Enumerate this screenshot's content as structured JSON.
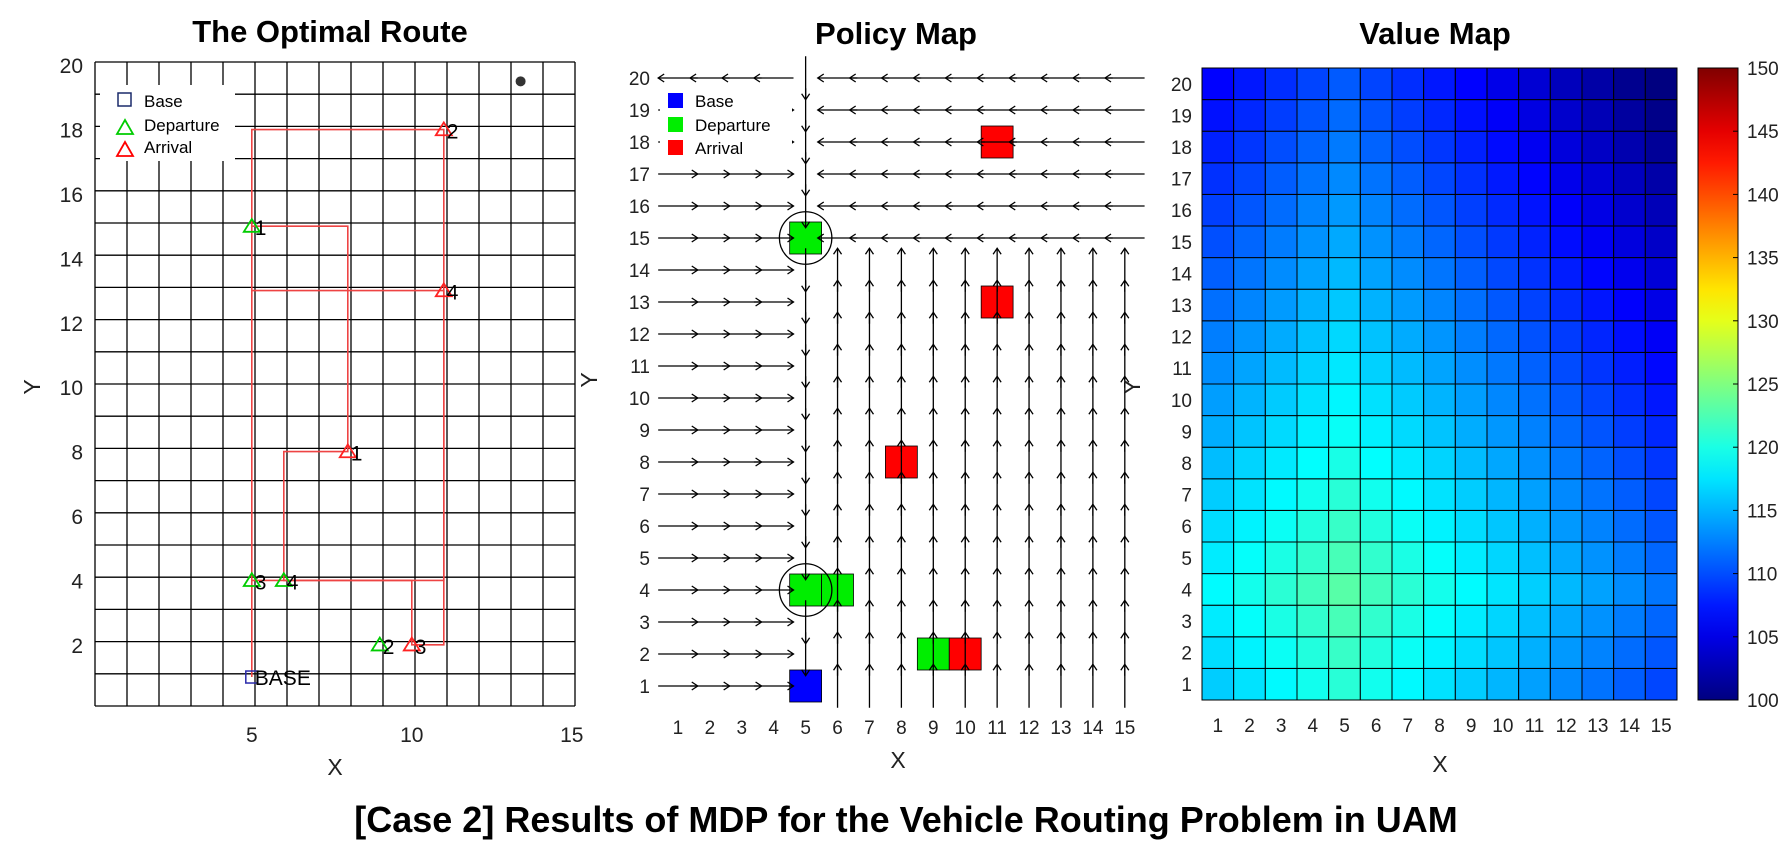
{
  "caption": "[Case 2] Results of MDP for the Vehicle Routing Problem in UAM",
  "colors": {
    "base": "#0000ff",
    "departure": "#00ee00",
    "arrival": "#ff0000",
    "route": "#ee4444",
    "grid": "#000000"
  },
  "chart_data": [
    {
      "type": "line",
      "title": "The Optimal Route",
      "xlabel": "X",
      "ylabel": "Y",
      "xlim": [
        0.1,
        15.1
      ],
      "ylim": [
        0.1,
        20.1
      ],
      "xticks": [
        5,
        10,
        15
      ],
      "yticks": [
        2,
        4,
        6,
        8,
        10,
        12,
        14,
        16,
        18,
        20
      ],
      "grid": true,
      "legend": {
        "position": "top-left",
        "entries": [
          "Base",
          "Departure",
          "Arrival"
        ]
      },
      "base": {
        "x": 5,
        "y": 1,
        "label": "BASE"
      },
      "departures": [
        {
          "x": 5,
          "y": 15,
          "label": "1"
        },
        {
          "x": 9,
          "y": 2,
          "label": "2"
        },
        {
          "x": 5,
          "y": 4,
          "label": "3"
        },
        {
          "x": 6,
          "y": 4,
          "label": "4"
        }
      ],
      "arrivals": [
        {
          "x": 8,
          "y": 8,
          "label": "1"
        },
        {
          "x": 11,
          "y": 18,
          "label": "2"
        },
        {
          "x": 10,
          "y": 2,
          "label": "3"
        },
        {
          "x": 11,
          "y": 13,
          "label": "4"
        }
      ],
      "extra_point": {
        "x": 13.4,
        "y": 19.5
      },
      "route": [
        [
          [
            5,
            1
          ],
          [
            5,
            18
          ],
          [
            11,
            18
          ],
          [
            11,
            2
          ],
          [
            10,
            2
          ],
          [
            10,
            4
          ],
          [
            6,
            4
          ],
          [
            6,
            8
          ],
          [
            8,
            8
          ],
          [
            8,
            15
          ],
          [
            5,
            15
          ]
        ],
        [
          [
            5,
            13
          ],
          [
            11,
            13
          ],
          [
            11,
            4
          ],
          [
            5,
            4
          ]
        ]
      ]
    },
    {
      "type": "heatmap",
      "title": "Policy Map",
      "xlabel": "X",
      "ylabel": "Y",
      "x": [
        "1",
        "2",
        "3",
        "4",
        "5",
        "6",
        "7",
        "8",
        "9",
        "10",
        "11",
        "12",
        "13",
        "14",
        "15"
      ],
      "y": [
        "1",
        "2",
        "3",
        "4",
        "5",
        "6",
        "7",
        "8",
        "9",
        "10",
        "11",
        "12",
        "13",
        "14",
        "15",
        "16",
        "17",
        "18",
        "19",
        "20"
      ],
      "legend": {
        "position": "top-left",
        "entries": [
          "Base",
          "Departure",
          "Arrival"
        ]
      },
      "base_cells": [
        [
          5,
          1
        ]
      ],
      "departure_cells": [
        [
          5,
          15
        ],
        [
          5,
          4
        ],
        [
          6,
          4
        ],
        [
          9,
          2
        ]
      ],
      "arrival_cells": [
        [
          11,
          18
        ],
        [
          11,
          13
        ],
        [
          8,
          8
        ],
        [
          10,
          2
        ]
      ],
      "stay_cells": [
        [
          5,
          15
        ],
        [
          5,
          4
        ]
      ],
      "policy_rule": "row 20: left toward x=5; rows 15-19: x<5 right, x=5 down, x>5 left; rows 1-14: x<5 right, x=5 down, x>5 up"
    },
    {
      "type": "heatmap",
      "title": "Value Map",
      "xlabel": "X",
      "ylabel": "Y",
      "x": [
        "1",
        "2",
        "3",
        "4",
        "5",
        "6",
        "7",
        "8",
        "9",
        "10",
        "11",
        "12",
        "13",
        "14",
        "15"
      ],
      "y": [
        "1",
        "2",
        "3",
        "4",
        "5",
        "6",
        "7",
        "8",
        "9",
        "10",
        "11",
        "12",
        "13",
        "14",
        "15",
        "16",
        "17",
        "18",
        "19",
        "20"
      ],
      "colorbar": {
        "min": 100,
        "max": 150,
        "ticks": [
          100,
          105,
          110,
          115,
          120,
          125,
          130,
          135,
          140,
          145,
          150
        ],
        "colormap": "jet"
      },
      "model": {
        "peak": 123,
        "peak_x": 5,
        "peak_y": 4,
        "slope_x": 1.1,
        "slope_y": 0.77,
        "min": 100
      }
    }
  ]
}
